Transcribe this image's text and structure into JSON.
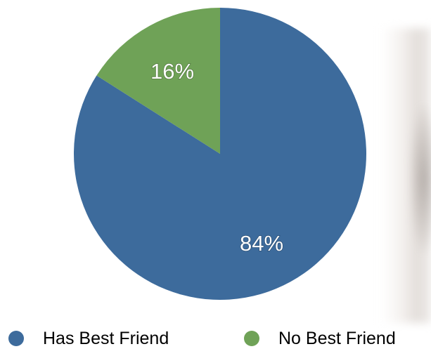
{
  "colors": {
    "has_best_friend": "#3d6b9c",
    "no_best_friend": "#6fa257"
  },
  "chart_data": {
    "type": "pie",
    "title": "",
    "start_angle_deg": 0,
    "direction": "clockwise",
    "slices": [
      {
        "name": "Has Best Friend",
        "value": 84,
        "label": "84%",
        "color": "#3d6b9c"
      },
      {
        "name": "No Best Friend",
        "value": 16,
        "label": "16%",
        "color": "#6fa257"
      }
    ],
    "legend": {
      "placement": "bottom",
      "entries": [
        "Has Best Friend",
        "No Best Friend"
      ]
    }
  }
}
